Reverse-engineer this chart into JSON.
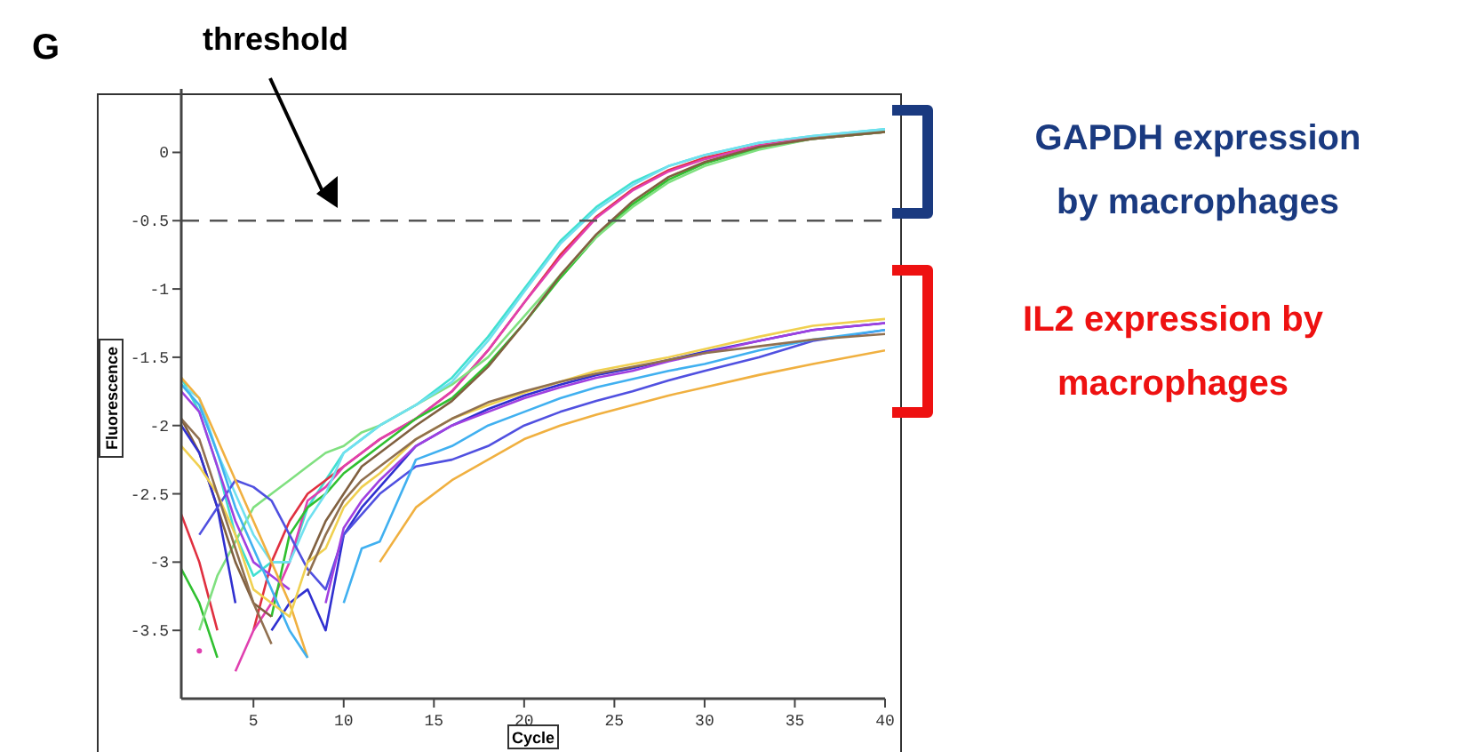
{
  "chart_data": {
    "type": "line",
    "title": "G",
    "xlabel": "Cycle",
    "ylabel": "Fluorescence",
    "annotations": [
      "GAPDH expression by macrophages",
      "IL2 expression by macrophages",
      "threshold"
    ],
    "x": [
      1,
      2,
      3,
      4,
      5,
      6,
      7,
      8,
      9,
      10,
      11,
      12,
      14,
      16,
      18,
      20,
      22,
      24,
      26,
      28,
      30,
      33,
      36,
      40
    ],
    "xlim": [
      1,
      40
    ],
    "xticks": [
      5,
      10,
      15,
      20,
      25,
      30,
      35,
      40
    ],
    "ylim": [
      -4,
      0.4
    ],
    "yticks": [
      -3.5,
      -3,
      -2.5,
      -2,
      -1.5,
      -1,
      -0.5,
      0
    ],
    "grid": false,
    "marker": "none",
    "line_style": "solid",
    "ref_lines": [
      {
        "axis": "y",
        "value": -0.5,
        "color": "#555555",
        "line_style": "dashed"
      }
    ],
    "series": [
      {
        "color": "#40e0d0",
        "values": [
          -1.65,
          -1.9,
          -2.3,
          -2.8,
          -3.1,
          -3.0,
          -3.0,
          -2.6,
          -2.4,
          -2.2,
          -2.1,
          -2.0,
          -1.85,
          -1.65,
          -1.35,
          -1.0,
          -0.65,
          -0.4,
          -0.22,
          -0.1,
          -0.02,
          0.07,
          0.12,
          0.17
        ]
      },
      {
        "color": "#e03040",
        "values": [
          -2.65,
          -3.0,
          -3.5,
          null,
          -3.5,
          -3.0,
          -2.7,
          -2.5,
          -2.4,
          -2.3,
          -2.2,
          -2.1,
          -1.95,
          -1.75,
          -1.45,
          -1.1,
          -0.75,
          -0.47,
          -0.27,
          -0.13,
          -0.04,
          0.05,
          0.11,
          0.15
        ]
      },
      {
        "color": "#e040b0",
        "values": [
          null,
          -3.65,
          null,
          -3.8,
          -3.5,
          -3.3,
          -3.0,
          -2.55,
          -2.45,
          -2.3,
          -2.2,
          -2.1,
          -1.95,
          -1.75,
          -1.45,
          -1.1,
          -0.77,
          -0.48,
          -0.28,
          -0.14,
          -0.05,
          0.05,
          0.1,
          0.15
        ]
      },
      {
        "color": "#30c030",
        "values": [
          -3.05,
          -3.3,
          -3.7,
          null,
          null,
          -3.4,
          -2.8,
          -2.6,
          -2.5,
          -2.35,
          -2.25,
          -2.15,
          -1.95,
          -1.8,
          -1.55,
          -1.25,
          -0.92,
          -0.62,
          -0.38,
          -0.2,
          -0.08,
          0.03,
          0.1,
          0.15
        ]
      },
      {
        "color": "#80e080",
        "values": [
          null,
          -3.5,
          -3.1,
          -2.85,
          -2.6,
          -2.5,
          -2.4,
          -2.3,
          -2.2,
          -2.15,
          -2.05,
          -2.0,
          -1.85,
          -1.7,
          -1.5,
          -1.2,
          -0.9,
          -0.62,
          -0.4,
          -0.22,
          -0.1,
          0.02,
          0.1,
          0.15
        ]
      },
      {
        "color": "#806040",
        "values": [
          -1.95,
          -2.2,
          -2.6,
          -3.0,
          -3.3,
          -3.4,
          null,
          -3.0,
          -2.7,
          -2.5,
          -2.3,
          -2.2,
          -2.0,
          -1.82,
          -1.57,
          -1.25,
          -0.9,
          -0.6,
          -0.36,
          -0.18,
          -0.07,
          0.04,
          0.1,
          0.15
        ]
      },
      {
        "color": "#70e0f0",
        "values": [
          -1.7,
          -1.8,
          -2.2,
          -2.5,
          -2.8,
          -3.0,
          -3.0,
          -2.7,
          -2.5,
          -2.2,
          -2.1,
          -2.0,
          -1.85,
          -1.68,
          -1.38,
          -1.02,
          -0.67,
          -0.42,
          -0.24,
          -0.1,
          -0.02,
          0.07,
          0.12,
          0.17
        ]
      },
      {
        "color": "#3030d0",
        "values": [
          -2.0,
          -2.2,
          -2.6,
          -3.3,
          null,
          -3.5,
          -3.3,
          -3.2,
          -3.5,
          -2.8,
          -2.6,
          -2.45,
          -2.15,
          -2.0,
          -1.88,
          -1.78,
          -1.7,
          -1.63,
          -1.58,
          -1.52,
          -1.46,
          -1.38,
          -1.3,
          -1.25
        ]
      },
      {
        "color": "#5050e0",
        "values": [
          null,
          -2.8,
          -2.6,
          -2.4,
          -2.45,
          -2.55,
          -2.8,
          -3.05,
          -3.2,
          -2.8,
          -2.65,
          -2.5,
          -2.3,
          -2.25,
          -2.15,
          -2.0,
          -1.9,
          -1.82,
          -1.75,
          -1.67,
          -1.6,
          -1.5,
          -1.38,
          -1.3
        ]
      },
      {
        "color": "#a040e0",
        "values": [
          -1.75,
          -1.9,
          -2.3,
          -2.7,
          -3.0,
          -3.1,
          -3.2,
          null,
          -3.3,
          -2.75,
          -2.55,
          -2.4,
          -2.15,
          -2.0,
          -1.9,
          -1.8,
          -1.72,
          -1.65,
          -1.6,
          -1.53,
          -1.47,
          -1.38,
          -1.3,
          -1.25
        ]
      },
      {
        "color": "#f0b040",
        "values": [
          -1.65,
          -1.8,
          -2.1,
          -2.4,
          -2.7,
          -3.0,
          -3.3,
          -3.7,
          null,
          null,
          null,
          -3.0,
          -2.6,
          -2.4,
          -2.25,
          -2.1,
          -2.0,
          -1.92,
          -1.85,
          -1.78,
          -1.72,
          -1.63,
          -1.55,
          -1.45
        ]
      },
      {
        "color": "#40b0f0",
        "values": [
          -1.7,
          -1.85,
          -2.2,
          -2.6,
          -2.9,
          -3.2,
          -3.5,
          -3.7,
          null,
          -3.3,
          -2.9,
          -2.85,
          -2.25,
          -2.15,
          -2.0,
          -1.9,
          -1.8,
          -1.72,
          -1.66,
          -1.6,
          -1.55,
          -1.45,
          -1.37,
          -1.3
        ]
      },
      {
        "color": "#f0d050",
        "values": [
          -2.15,
          -2.3,
          -2.5,
          -2.8,
          -3.2,
          -3.3,
          -3.4,
          -3.0,
          -2.9,
          -2.6,
          -2.45,
          -2.35,
          -2.1,
          -1.95,
          -1.85,
          -1.76,
          -1.68,
          -1.6,
          -1.55,
          -1.5,
          -1.44,
          -1.35,
          -1.27,
          -1.22
        ]
      },
      {
        "color": "#907050",
        "values": [
          -1.95,
          -2.1,
          -2.5,
          -2.9,
          -3.3,
          -3.6,
          null,
          -3.1,
          -2.8,
          -2.55,
          -2.4,
          -2.3,
          -2.1,
          -1.95,
          -1.83,
          -1.75,
          -1.68,
          -1.62,
          -1.57,
          -1.52,
          -1.47,
          -1.42,
          -1.37,
          -1.33
        ]
      }
    ]
  }
}
